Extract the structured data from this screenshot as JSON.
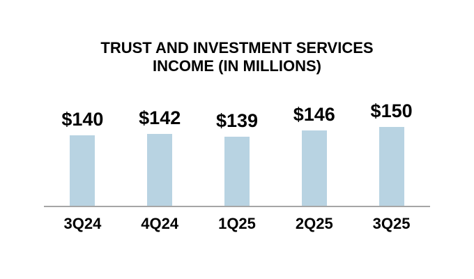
{
  "chart_data": {
    "type": "bar",
    "title": "TRUST AND INVESTMENT SERVICES INCOME (IN MILLIONS)",
    "title_lines": [
      "TRUST AND INVESTMENT SERVICES",
      "INCOME (IN MILLIONS)"
    ],
    "categories": [
      "3Q24",
      "4Q24",
      "1Q25",
      "2Q25",
      "3Q25"
    ],
    "values": [
      140,
      142,
      139,
      146,
      150
    ],
    "value_labels": [
      "$140",
      "$142",
      "$139",
      "$146",
      "$150"
    ],
    "ylabel": "",
    "xlabel": "",
    "ylim": [
      60,
      160
    ],
    "grid": false,
    "legend": false,
    "colors": {
      "bar": "#B8D3E2",
      "axis_line": "#A6A6A6",
      "text": "#000000",
      "background": "#FFFFFF"
    }
  }
}
